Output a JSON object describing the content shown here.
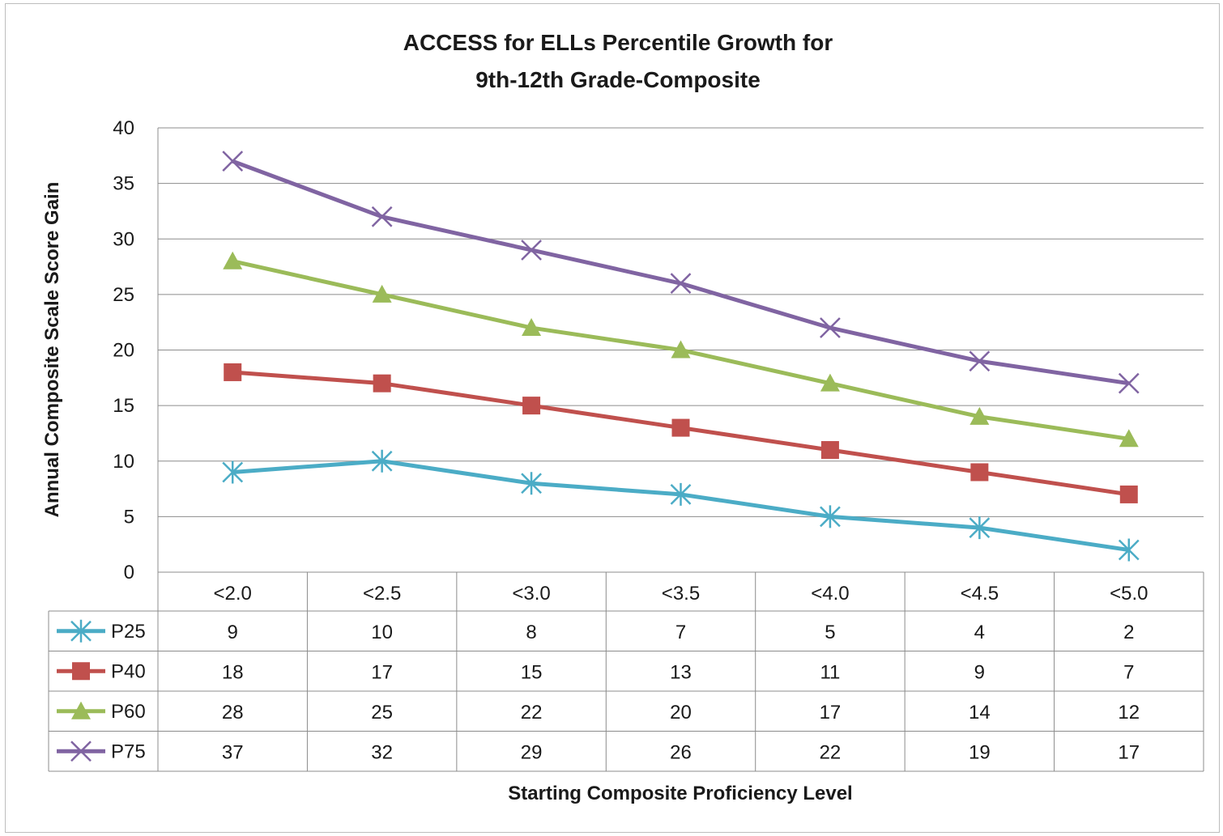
{
  "chart_data": {
    "type": "line",
    "title_lines": [
      "ACCESS  for ELLs Percentile Growth for",
      "9th-12th Grade-Composite"
    ],
    "xlabel": "Starting  Composite  Proficiency  Level",
    "ylabel": "Annual Composite  Scale Score Gain",
    "categories": [
      "<2.0",
      "<2.5",
      "<3.0",
      "<3.5",
      "<4.0",
      "<4.5",
      "<5.0"
    ],
    "ylim": [
      0,
      40
    ],
    "yticks": [
      "0",
      "5",
      "10",
      "15",
      "20",
      "25",
      "30",
      "35",
      "40"
    ],
    "grid": true,
    "legend": "data-table",
    "series": [
      {
        "name": "P25",
        "values": [
          9,
          10,
          8,
          7,
          5,
          4,
          2
        ],
        "color": "#4bacc6",
        "marker": "star"
      },
      {
        "name": "P40",
        "values": [
          18,
          17,
          15,
          13,
          11,
          9,
          7
        ],
        "color": "#c0504d",
        "marker": "square"
      },
      {
        "name": "P60",
        "values": [
          28,
          25,
          22,
          20,
          17,
          14,
          12
        ],
        "color": "#9bbb59",
        "marker": "triangle"
      },
      {
        "name": "P75",
        "values": [
          37,
          32,
          29,
          26,
          22,
          19,
          17
        ],
        "color": "#8064a2",
        "marker": "x"
      }
    ]
  }
}
